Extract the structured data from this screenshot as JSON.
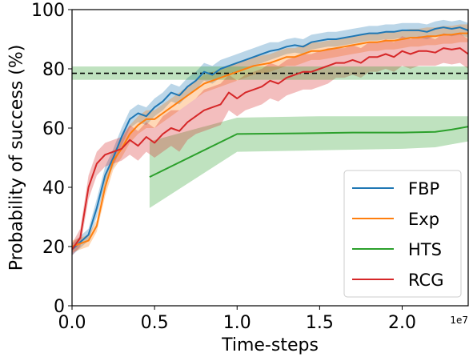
{
  "chart_data": {
    "type": "line",
    "title": "",
    "xlabel": "Time-steps",
    "ylabel": "Probability of success (%)",
    "x_offset_label": "1e7",
    "x_scale": 10000000,
    "xlim": [
      0,
      2.4
    ],
    "ylim": [
      0,
      100
    ],
    "xticks": [
      0.0,
      0.5,
      1.0,
      1.5,
      2.0
    ],
    "xtick_labels": [
      "0.0",
      "0.5",
      "1.0",
      "1.5",
      "2.0"
    ],
    "yticks": [
      0,
      20,
      40,
      60,
      80,
      100
    ],
    "ytick_labels": [
      "0",
      "20",
      "40",
      "60",
      "80",
      "100"
    ],
    "grid": false,
    "legend_position": "lower-right",
    "reference_line": {
      "value": 78.5,
      "lower": 76.3,
      "upper": 80.8,
      "color": "#2ca02c",
      "style": "dashed",
      "label": ""
    },
    "series": [
      {
        "name": "FBP",
        "color": "#1f77b4",
        "x": [
          0.0,
          0.1,
          0.15,
          0.2,
          0.25,
          0.3,
          0.35,
          0.4,
          0.45,
          0.5,
          0.55,
          0.6,
          0.65,
          0.7,
          0.75,
          0.8,
          0.85,
          0.9,
          0.95,
          1.0,
          1.05,
          1.1,
          1.15,
          1.2,
          1.25,
          1.3,
          1.35,
          1.4,
          1.45,
          1.5,
          1.55,
          1.6,
          1.65,
          1.7,
          1.75,
          1.8,
          1.85,
          1.9,
          1.95,
          2.0,
          2.05,
          2.1,
          2.15,
          2.2,
          2.25,
          2.3,
          2.35,
          2.4
        ],
        "y": [
          19,
          24,
          33,
          44,
          50,
          57,
          63,
          65,
          64,
          67,
          69,
          72,
          71,
          74,
          76,
          79,
          78,
          80,
          81,
          82,
          83,
          84,
          85,
          86,
          86.5,
          87.5,
          88,
          87.5,
          89,
          89.5,
          90,
          90,
          90.5,
          91,
          91.5,
          92,
          92,
          92.5,
          92.5,
          93,
          93,
          93,
          92.5,
          93.5,
          94,
          93.5,
          94,
          93
        ],
        "lower": [
          17,
          22,
          30,
          41,
          47,
          54,
          60,
          62,
          61,
          64,
          66,
          69,
          68,
          71,
          73,
          76,
          75,
          77,
          78,
          79,
          80,
          81,
          82,
          83,
          84,
          85,
          85.5,
          85,
          86.5,
          87,
          87.5,
          87.5,
          88,
          88.5,
          89,
          89.5,
          89.5,
          90,
          90,
          90.5,
          90.5,
          90.5,
          90,
          91,
          91.5,
          91,
          91.5,
          90.5
        ],
        "upper": [
          21,
          26,
          36,
          47,
          53,
          60,
          66,
          68,
          67,
          70,
          72,
          75,
          74,
          77,
          79,
          82,
          81,
          83,
          84,
          85,
          86,
          87,
          88,
          89,
          89,
          90,
          90.5,
          90,
          91.5,
          92,
          92.5,
          92.5,
          93,
          93.5,
          94,
          94.5,
          94.5,
          95,
          95,
          95.5,
          95.5,
          95.5,
          95,
          96,
          96.5,
          96,
          96.5,
          95.5
        ]
      },
      {
        "name": "Exp",
        "color": "#ff7f0e",
        "x": [
          0.0,
          0.1,
          0.15,
          0.2,
          0.25,
          0.3,
          0.35,
          0.4,
          0.45,
          0.5,
          0.55,
          0.6,
          0.65,
          0.7,
          0.75,
          0.8,
          0.85,
          0.9,
          0.95,
          1.0,
          1.05,
          1.1,
          1.15,
          1.2,
          1.25,
          1.3,
          1.35,
          1.4,
          1.45,
          1.5,
          1.55,
          1.6,
          1.65,
          1.7,
          1.75,
          1.8,
          1.85,
          1.9,
          1.95,
          2.0,
          2.05,
          2.1,
          2.15,
          2.2,
          2.25,
          2.3,
          2.35,
          2.4
        ],
        "y": [
          20,
          22,
          27,
          40,
          49,
          53,
          58,
          61,
          63,
          63,
          65,
          67,
          69,
          71,
          73,
          75,
          76,
          77,
          78,
          79,
          80,
          81,
          81.5,
          82,
          83,
          84,
          84,
          85,
          86,
          86,
          86.5,
          87,
          87.5,
          88,
          88.5,
          89,
          89,
          89.5,
          89.5,
          90,
          90.5,
          90.5,
          91,
          91,
          91.5,
          91.5,
          92,
          92
        ],
        "lower": [
          18,
          20,
          25,
          37,
          46,
          50,
          55,
          58,
          60,
          60,
          62,
          64,
          66,
          68,
          70,
          72,
          73,
          74,
          75,
          76,
          77,
          78,
          78.5,
          79,
          80,
          81,
          81,
          82,
          83,
          83,
          83.5,
          84,
          84.5,
          85,
          85.5,
          86,
          86,
          86.5,
          86.5,
          87,
          87.5,
          87.5,
          88,
          88,
          88.5,
          88.5,
          89,
          89
        ],
        "upper": [
          22,
          24,
          29,
          43,
          52,
          56,
          61,
          64,
          66,
          66,
          68,
          70,
          72,
          74,
          76,
          78,
          79,
          80,
          81,
          82,
          83,
          84,
          84.5,
          85,
          86,
          87,
          87,
          88,
          89,
          89,
          89.5,
          90,
          90.5,
          91,
          91.5,
          92,
          92,
          92.5,
          92.5,
          93,
          93.5,
          93.5,
          94,
          94,
          94.5,
          94.5,
          95,
          95
        ]
      },
      {
        "name": "HTS",
        "color": "#2ca02c",
        "x": [
          0.47,
          1.0,
          1.5,
          1.7,
          2.0,
          2.2,
          2.3,
          2.4
        ],
        "y": [
          43.5,
          58,
          58.3,
          58.5,
          58.5,
          58.7,
          59.5,
          60.5
        ],
        "lower": [
          33,
          52,
          52.5,
          52.7,
          53,
          53.5,
          54.5,
          55.5
        ],
        "upper": [
          55.5,
          63.5,
          64,
          64,
          64,
          64,
          64,
          64
        ]
      },
      {
        "name": "RCG",
        "color": "#d62728",
        "x": [
          0.0,
          0.05,
          0.1,
          0.15,
          0.2,
          0.25,
          0.3,
          0.35,
          0.4,
          0.45,
          0.5,
          0.55,
          0.6,
          0.65,
          0.7,
          0.75,
          0.8,
          0.85,
          0.9,
          0.95,
          1.0,
          1.05,
          1.1,
          1.15,
          1.2,
          1.25,
          1.3,
          1.35,
          1.4,
          1.45,
          1.5,
          1.55,
          1.6,
          1.65,
          1.7,
          1.75,
          1.8,
          1.85,
          1.9,
          1.95,
          2.0,
          2.05,
          2.1,
          2.15,
          2.2,
          2.25,
          2.3,
          2.35,
          2.4
        ],
        "y": [
          19,
          23,
          40,
          48,
          51,
          52,
          53,
          56,
          54,
          57,
          55,
          58,
          60,
          59,
          62,
          64,
          66,
          67,
          68,
          72,
          70,
          72,
          73,
          74,
          76,
          75,
          77,
          78,
          79,
          79,
          80,
          81,
          82,
          82,
          83,
          82,
          84,
          84,
          85,
          84,
          86,
          85,
          86,
          86,
          85.5,
          87,
          86.5,
          87,
          85
        ],
        "lower": [
          17,
          20,
          36,
          44,
          47,
          48,
          49,
          51,
          49,
          52,
          50,
          52,
          54,
          52,
          56,
          58,
          59,
          60,
          61,
          66,
          64,
          66,
          67,
          68,
          70,
          69,
          71,
          72,
          73,
          73,
          74,
          75,
          77,
          77,
          78,
          77,
          79,
          79,
          80,
          79,
          81,
          80,
          81,
          81,
          81,
          82,
          81.5,
          82,
          80
        ],
        "upper": [
          21,
          26,
          44,
          52,
          55,
          56,
          57,
          61,
          59,
          62,
          60,
          64,
          66,
          66,
          68,
          70,
          73,
          74,
          75,
          78,
          76,
          78,
          79,
          80,
          82,
          81,
          83,
          84,
          85,
          85,
          86,
          87,
          87,
          87,
          88,
          87,
          89,
          89,
          90,
          89,
          91,
          90,
          91,
          91,
          90,
          92,
          91.5,
          92,
          90
        ]
      }
    ]
  }
}
